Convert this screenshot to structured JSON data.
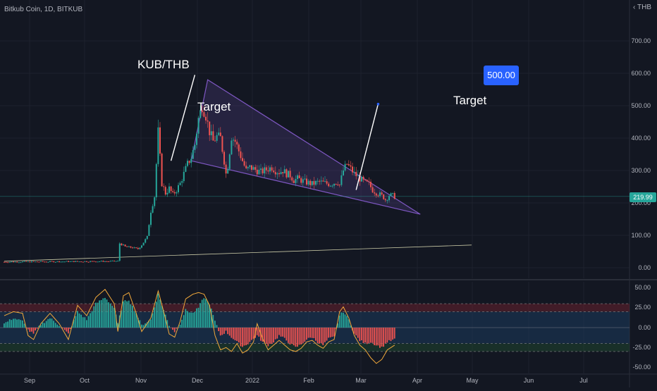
{
  "header": {
    "symbol_title": "Bitkub Coin, 1D, BITKUB",
    "currency": "THB"
  },
  "annotations": {
    "pair_label": "KUB/THB",
    "target_label_1": "Target",
    "target_label_2": "Target",
    "target_price": "500.00",
    "last_price": "219.99"
  },
  "colors": {
    "background": "#131722",
    "up_candle": "#26a69a",
    "down_candle": "#ef5350",
    "wedge_line": "#7e57c2",
    "wedge_fill": "#4a3a78",
    "osc_line": "#f2a93b",
    "text": "#b2b5be",
    "target_box": "#2962ff",
    "last_price_badge": "#26a69a"
  },
  "chart_data": [
    {
      "type": "candlestick",
      "title": "Bitkub Coin, 1D, BITKUB",
      "yunit": "THB",
      "yticks": [
        "700.00",
        "600.00",
        "500.00",
        "400.00",
        "300.00",
        "200.00",
        "100.00",
        "0.00"
      ],
      "ylim": [
        -20,
        760
      ],
      "xticks": [
        "Sep",
        "Oct",
        "Nov",
        "Dec",
        "2022",
        "Feb",
        "Mar",
        "Apr",
        "May",
        "Jun",
        "Jul"
      ],
      "grid": true,
      "anchors": [
        [
          0,
          18
        ],
        [
          60,
          20
        ],
        [
          62,
          20.5
        ],
        [
          63,
          75
        ],
        [
          64,
          72
        ],
        [
          66,
          65
        ],
        [
          70,
          62
        ],
        [
          73,
          58
        ],
        [
          75,
          70
        ],
        [
          78,
          95
        ],
        [
          80,
          175
        ],
        [
          82,
          220
        ],
        [
          84,
          420
        ],
        [
          86,
          260
        ],
        [
          88,
          230
        ],
        [
          90,
          245
        ],
        [
          92,
          225
        ],
        [
          94,
          240
        ],
        [
          96,
          260
        ],
        [
          98,
          290
        ],
        [
          100,
          320
        ],
        [
          102,
          340
        ],
        [
          104,
          380
        ],
        [
          106,
          460
        ],
        [
          108,
          500
        ],
        [
          110,
          470
        ],
        [
          112,
          420
        ],
        [
          114,
          390
        ],
        [
          116,
          405
        ],
        [
          118,
          400
        ],
        [
          120,
          330
        ],
        [
          121,
          290
        ],
        [
          122,
          315
        ],
        [
          124,
          405
        ],
        [
          126,
          390
        ],
        [
          128,
          360
        ],
        [
          130,
          330
        ],
        [
          132,
          300
        ],
        [
          134,
          310
        ],
        [
          136,
          305
        ],
        [
          138,
          300
        ],
        [
          140,
          295
        ],
        [
          142,
          300
        ],
        [
          144,
          305
        ],
        [
          146,
          310
        ],
        [
          148,
          300
        ],
        [
          150,
          295
        ],
        [
          152,
          300
        ],
        [
          154,
          290
        ],
        [
          156,
          285
        ],
        [
          158,
          270
        ],
        [
          160,
          275
        ],
        [
          162,
          270
        ],
        [
          164,
          265
        ],
        [
          166,
          262
        ],
        [
          168,
          258
        ],
        [
          170,
          262
        ],
        [
          172,
          265
        ],
        [
          174,
          262
        ],
        [
          176,
          260
        ],
        [
          178,
          258
        ],
        [
          180,
          262
        ],
        [
          182,
          265
        ],
        [
          183,
          255
        ],
        [
          185,
          300
        ],
        [
          187,
          320
        ],
        [
          189,
          305
        ],
        [
          191,
          290
        ],
        [
          193,
          280
        ],
        [
          195,
          270
        ],
        [
          197,
          262
        ],
        [
          199,
          258
        ],
        [
          201,
          240
        ],
        [
          203,
          232
        ],
        [
          205,
          225
        ],
        [
          207,
          218
        ],
        [
          208,
          210
        ],
        [
          210,
          224
        ],
        [
          212,
          222
        ],
        [
          213,
          220
        ]
      ],
      "wedge": {
        "upper": [
          [
            102,
            330
          ],
          [
            111,
            580
          ],
          [
            191,
            245
          ],
          [
            227,
            165
          ]
        ],
        "lower": [
          [
            102,
            330
          ],
          [
            227,
            165
          ]
        ]
      },
      "support_line": [
        [
          0,
          20
        ],
        [
          255,
          70
        ]
      ],
      "target_arrows": [
        [
          [
            91,
            330
          ],
          [
            104,
            595
          ]
        ],
        [
          [
            192,
            240
          ],
          [
            204,
            505
          ]
        ]
      ]
    },
    {
      "type": "oscillator",
      "yticks": [
        "50.00",
        "25.00",
        "0.00",
        "-25.00",
        "-50.00"
      ],
      "ylim": [
        -55,
        55
      ],
      "bands": [
        30,
        20,
        -20,
        -30
      ],
      "histogram_anchors": [
        [
          0,
          5
        ],
        [
          5,
          12
        ],
        [
          10,
          8
        ],
        [
          13,
          -3
        ],
        [
          16,
          -8
        ],
        [
          20,
          4
        ],
        [
          25,
          12
        ],
        [
          30,
          3
        ],
        [
          35,
          -8
        ],
        [
          40,
          20
        ],
        [
          45,
          10
        ],
        [
          50,
          30
        ],
        [
          55,
          38
        ],
        [
          60,
          25
        ],
        [
          62,
          5
        ],
        [
          65,
          32
        ],
        [
          68,
          35
        ],
        [
          72,
          18
        ],
        [
          75,
          3
        ],
        [
          80,
          10
        ],
        [
          84,
          42
        ],
        [
          87,
          22
        ],
        [
          90,
          3
        ],
        [
          93,
          -5
        ],
        [
          96,
          5
        ],
        [
          99,
          22
        ],
        [
          103,
          18
        ],
        [
          106,
          25
        ],
        [
          109,
          38
        ],
        [
          112,
          30
        ],
        [
          115,
          8
        ],
        [
          118,
          -10
        ],
        [
          121,
          -5
        ],
        [
          124,
          -12
        ],
        [
          127,
          -18
        ],
        [
          130,
          -24
        ],
        [
          133,
          -20
        ],
        [
          136,
          -14
        ],
        [
          138,
          -10
        ],
        [
          141,
          -18
        ],
        [
          144,
          -22
        ],
        [
          147,
          -18
        ],
        [
          150,
          -10
        ],
        [
          153,
          -14
        ],
        [
          156,
          -20
        ],
        [
          159,
          -25
        ],
        [
          162,
          -21
        ],
        [
          165,
          -15
        ],
        [
          168,
          -12
        ],
        [
          171,
          -18
        ],
        [
          174,
          -22
        ],
        [
          177,
          -14
        ],
        [
          180,
          -12
        ],
        [
          183,
          15
        ],
        [
          185,
          20
        ],
        [
          188,
          10
        ],
        [
          191,
          -8
        ],
        [
          194,
          -16
        ],
        [
          197,
          -20
        ],
        [
          200,
          -18
        ],
        [
          203,
          -22
        ],
        [
          206,
          -25
        ],
        [
          209,
          -18
        ],
        [
          213,
          -15
        ]
      ],
      "line_anchors": [
        [
          0,
          15
        ],
        [
          5,
          20
        ],
        [
          10,
          18
        ],
        [
          13,
          -10
        ],
        [
          16,
          -15
        ],
        [
          20,
          5
        ],
        [
          25,
          18
        ],
        [
          30,
          5
        ],
        [
          35,
          -15
        ],
        [
          40,
          28
        ],
        [
          45,
          15
        ],
        [
          50,
          38
        ],
        [
          55,
          48
        ],
        [
          60,
          30
        ],
        [
          62,
          -5
        ],
        [
          65,
          40
        ],
        [
          68,
          44
        ],
        [
          72,
          18
        ],
        [
          75,
          -5
        ],
        [
          80,
          12
        ],
        [
          84,
          46
        ],
        [
          87,
          20
        ],
        [
          90,
          -8
        ],
        [
          93,
          -12
        ],
        [
          96,
          8
        ],
        [
          99,
          36
        ],
        [
          103,
          42
        ],
        [
          106,
          44
        ],
        [
          109,
          42
        ],
        [
          112,
          28
        ],
        [
          115,
          -10
        ],
        [
          118,
          -28
        ],
        [
          121,
          -25
        ],
        [
          124,
          -30
        ],
        [
          127,
          -20
        ],
        [
          130,
          -32
        ],
        [
          133,
          -28
        ],
        [
          136,
          -18
        ],
        [
          138,
          5
        ],
        [
          141,
          -14
        ],
        [
          144,
          -28
        ],
        [
          147,
          -22
        ],
        [
          150,
          -16
        ],
        [
          153,
          -22
        ],
        [
          156,
          -28
        ],
        [
          159,
          -30
        ],
        [
          162,
          -26
        ],
        [
          165,
          -18
        ],
        [
          168,
          -16
        ],
        [
          171,
          -22
        ],
        [
          174,
          -26
        ],
        [
          177,
          -18
        ],
        [
          180,
          -15
        ],
        [
          183,
          20
        ],
        [
          185,
          26
        ],
        [
          188,
          12
        ],
        [
          191,
          -10
        ],
        [
          194,
          -22
        ],
        [
          197,
          -28
        ],
        [
          200,
          -38
        ],
        [
          203,
          -45
        ],
        [
          206,
          -40
        ],
        [
          209,
          -28
        ],
        [
          213,
          -22
        ]
      ]
    }
  ]
}
